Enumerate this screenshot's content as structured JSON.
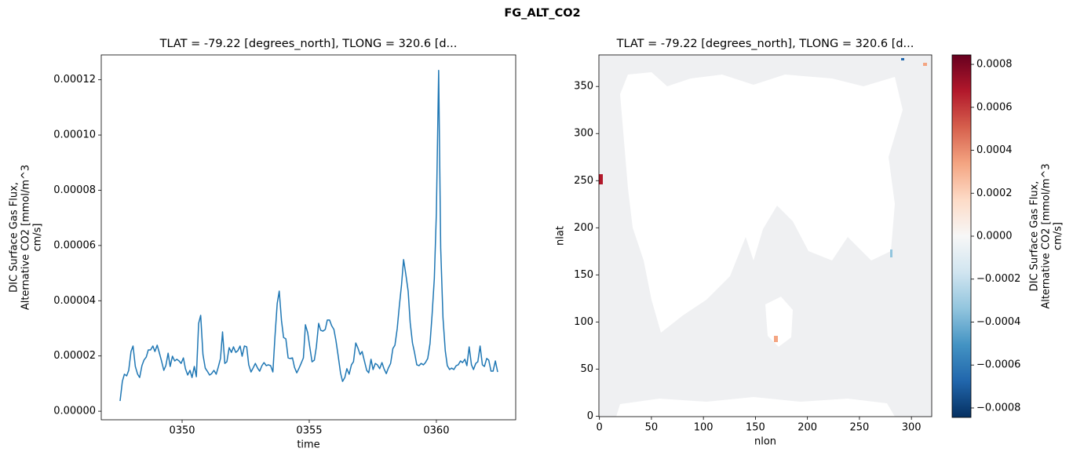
{
  "suptitle": "FG_ALT_CO2",
  "chart_data": [
    {
      "type": "line",
      "title": "TLAT = -79.22 [degrees_north], TLONG = 320.6 [d...",
      "xlabel": "time",
      "ylabel": [
        "DIC Surface Gas Flux,",
        "Alternative CO2 [mmol/m^3",
        "cm/s]"
      ],
      "xlim": [
        346.82,
        363.12
      ],
      "ylim": [
        -3.1e-06,
        0.000129
      ],
      "xticks": [
        {
          "value": 350,
          "label": "0350"
        },
        {
          "value": 355,
          "label": "0355"
        },
        {
          "value": 360,
          "label": "0360"
        }
      ],
      "yticks": [
        {
          "value": 0,
          "label": "0.00000"
        },
        {
          "value": 2e-05,
          "label": "0.00002"
        },
        {
          "value": 4e-05,
          "label": "0.00004"
        },
        {
          "value": 6e-05,
          "label": "0.00006"
        },
        {
          "value": 8e-05,
          "label": "0.00008"
        },
        {
          "value": 0.0001,
          "label": "0.00010"
        },
        {
          "value": 0.00012,
          "label": "0.00012"
        }
      ],
      "x": [
        347.56,
        347.65,
        347.73,
        347.82,
        347.9,
        347.99,
        348.07,
        348.16,
        348.25,
        348.33,
        348.42,
        348.5,
        348.59,
        348.67,
        348.76,
        348.85,
        348.93,
        349.02,
        349.1,
        349.19,
        349.28,
        349.36,
        349.45,
        349.53,
        349.62,
        349.71,
        349.79,
        349.88,
        349.96,
        350.05,
        350.13,
        350.22,
        350.31,
        350.39,
        350.48,
        350.56,
        350.65,
        350.73,
        350.82,
        350.91,
        350.99,
        351.08,
        351.16,
        351.25,
        351.34,
        351.42,
        351.51,
        351.59,
        351.68,
        351.76,
        351.85,
        351.94,
        352.02,
        352.11,
        352.19,
        352.28,
        352.36,
        352.45,
        352.54,
        352.62,
        352.71,
        352.79,
        352.88,
        352.97,
        353.05,
        353.14,
        353.22,
        353.31,
        353.39,
        353.48,
        353.57,
        353.65,
        353.74,
        353.82,
        353.91,
        353.99,
        354.08,
        354.17,
        354.25,
        354.34,
        354.42,
        354.51,
        354.6,
        354.68,
        354.77,
        354.85,
        354.94,
        355.02,
        355.11,
        355.2,
        355.28,
        355.37,
        355.45,
        355.54,
        355.63,
        355.71,
        355.8,
        355.88,
        355.97,
        356.05,
        356.14,
        356.23,
        356.31,
        356.4,
        356.48,
        356.57,
        356.66,
        356.74,
        356.83,
        356.91,
        357.0,
        357.08,
        357.17,
        357.26,
        357.34,
        357.43,
        357.51,
        357.6,
        357.68,
        357.77,
        357.86,
        357.94,
        358.03,
        358.11,
        358.2,
        358.29,
        358.37,
        358.46,
        358.54,
        358.63,
        358.71,
        358.8,
        358.89,
        358.97,
        359.06,
        359.14,
        359.23,
        359.32,
        359.4,
        359.49,
        359.57,
        359.66,
        359.75,
        359.83,
        359.92,
        360.0,
        360.09,
        360.17,
        360.26,
        360.35,
        360.43,
        360.52,
        360.6,
        360.69,
        360.78,
        360.86,
        360.95,
        361.03,
        361.12,
        361.2,
        361.29,
        361.38,
        361.46,
        361.55,
        361.63,
        361.72,
        361.81,
        361.89,
        361.98,
        362.06,
        362.15,
        362.23,
        362.32,
        362.41
      ],
      "series": [
        {
          "color": "#1f77b4",
          "values": [
            3.7e-06,
            1.08e-05,
            1.34e-05,
            1.28e-05,
            1.48e-05,
            2.16e-05,
            2.36e-05,
            1.62e-05,
            1.34e-05,
            1.22e-05,
            1.65e-05,
            1.85e-05,
            1.96e-05,
            2.22e-05,
            2.22e-05,
            2.36e-05,
            2.16e-05,
            2.39e-05,
            2.13e-05,
            1.82e-05,
            1.48e-05,
            1.65e-05,
            2.1e-05,
            1.62e-05,
            1.99e-05,
            1.82e-05,
            1.88e-05,
            1.82e-05,
            1.73e-05,
            1.93e-05,
            1.54e-05,
            1.31e-05,
            1.48e-05,
            1.22e-05,
            1.62e-05,
            1.25e-05,
            3.18e-05,
            3.47e-05,
            2.05e-05,
            1.56e-05,
            1.45e-05,
            1.31e-05,
            1.36e-05,
            1.48e-05,
            1.34e-05,
            1.59e-05,
            1.91e-05,
            2.87e-05,
            1.73e-05,
            1.79e-05,
            2.3e-05,
            2.13e-05,
            2.33e-05,
            2.13e-05,
            2.19e-05,
            2.36e-05,
            1.99e-05,
            2.36e-05,
            2.33e-05,
            1.68e-05,
            1.42e-05,
            1.56e-05,
            1.73e-05,
            1.56e-05,
            1.45e-05,
            1.65e-05,
            1.76e-05,
            1.65e-05,
            1.68e-05,
            1.65e-05,
            1.42e-05,
            2.67e-05,
            3.9e-05,
            4.35e-05,
            3.27e-05,
            2.67e-05,
            2.62e-05,
            1.93e-05,
            1.91e-05,
            1.93e-05,
            1.59e-05,
            1.39e-05,
            1.56e-05,
            1.73e-05,
            1.93e-05,
            3.13e-05,
            2.84e-05,
            2.33e-05,
            1.79e-05,
            1.85e-05,
            2.33e-05,
            3.18e-05,
            2.93e-05,
            2.9e-05,
            2.96e-05,
            3.3e-05,
            3.3e-05,
            3.1e-05,
            2.96e-05,
            2.56e-05,
            1.99e-05,
            1.39e-05,
            1.08e-05,
            1.22e-05,
            1.54e-05,
            1.34e-05,
            1.68e-05,
            1.79e-05,
            2.47e-05,
            2.3e-05,
            2.05e-05,
            2.16e-05,
            1.82e-05,
            1.48e-05,
            1.39e-05,
            1.88e-05,
            1.51e-05,
            1.73e-05,
            1.68e-05,
            1.54e-05,
            1.76e-05,
            1.54e-05,
            1.36e-05,
            1.56e-05,
            1.73e-05,
            2.27e-05,
            2.39e-05,
            2.99e-05,
            3.78e-05,
            4.58e-05,
            5.49e-05,
            4.95e-05,
            4.35e-05,
            3.21e-05,
            2.47e-05,
            2.13e-05,
            1.68e-05,
            1.65e-05,
            1.73e-05,
            1.68e-05,
            1.76e-05,
            1.91e-05,
            2.45e-05,
            3.47e-05,
            4.81e-05,
            7.17e-05,
            0.0001234,
            5.91e-05,
            3.38e-05,
            2.19e-05,
            1.65e-05,
            1.51e-05,
            1.56e-05,
            1.51e-05,
            1.65e-05,
            1.68e-05,
            1.82e-05,
            1.76e-05,
            1.88e-05,
            1.65e-05,
            2.33e-05,
            1.68e-05,
            1.51e-05,
            1.73e-05,
            1.79e-05,
            2.36e-05,
            1.68e-05,
            1.62e-05,
            1.91e-05,
            1.85e-05,
            1.45e-05,
            1.45e-05,
            1.82e-05,
            1.42e-05
          ]
        }
      ]
    },
    {
      "type": "heatmap",
      "title": "TLAT = -79.22 [degrees_north], TLONG = 320.6 [d...",
      "xlabel": "nlon",
      "ylabel": "nlat",
      "xlim": [
        -0.5,
        319.5
      ],
      "ylim": [
        -0.5,
        383.5
      ],
      "xticks": [
        0,
        50,
        100,
        150,
        200,
        250,
        300
      ],
      "yticks": [
        0,
        50,
        100,
        150,
        200,
        250,
        300,
        350
      ],
      "colorbar": {
        "label": [
          "DIC Surface Gas Flux,",
          "Alternative CO2 [mmol/m^3",
          "cm/s]"
        ],
        "lim": [
          -0.000844,
          0.000844
        ],
        "ticks": [
          {
            "value": -0.0008,
            "label": "−0.0008"
          },
          {
            "value": -0.0006,
            "label": "−0.0006"
          },
          {
            "value": -0.0004,
            "label": "−0.0004"
          },
          {
            "value": -0.0002,
            "label": "−0.0002"
          },
          {
            "value": 0,
            "label": "0.0000"
          },
          {
            "value": 0.0002,
            "label": "0.0002"
          },
          {
            "value": 0.0004,
            "label": "0.0004"
          },
          {
            "value": 0.0006,
            "label": "0.0006"
          },
          {
            "value": 0.0008,
            "label": "0.0008"
          }
        ],
        "cmap": [
          "#053061",
          "#2166ac",
          "#4393c3",
          "#92c5de",
          "#d1e5f0",
          "#f7f7f7",
          "#fddbc7",
          "#f4a582",
          "#d6604d",
          "#b2182b",
          "#67001f"
        ]
      }
    }
  ]
}
